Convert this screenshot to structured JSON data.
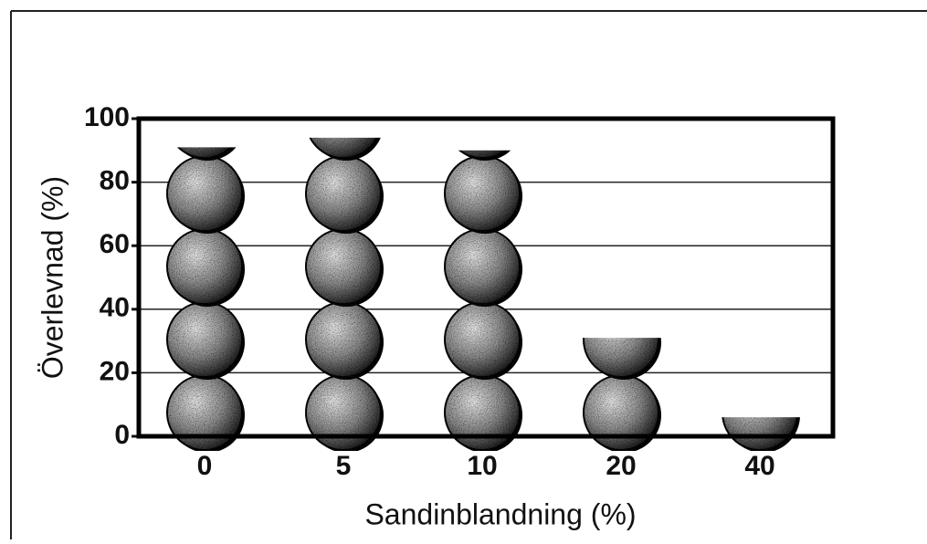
{
  "chart_data": {
    "type": "pictograph",
    "x_label": "Sandinblandning (%)",
    "y_label": "Överlevnad (%)",
    "categories": [
      "0",
      "5",
      "10",
      "20",
      "40"
    ],
    "values": [
      91,
      94,
      90,
      31,
      6
    ],
    "color": "#8a8a8a",
    "ylim": [
      0,
      100
    ],
    "yticks": [
      0,
      20,
      40,
      60,
      80,
      100
    ],
    "grid": true
  }
}
